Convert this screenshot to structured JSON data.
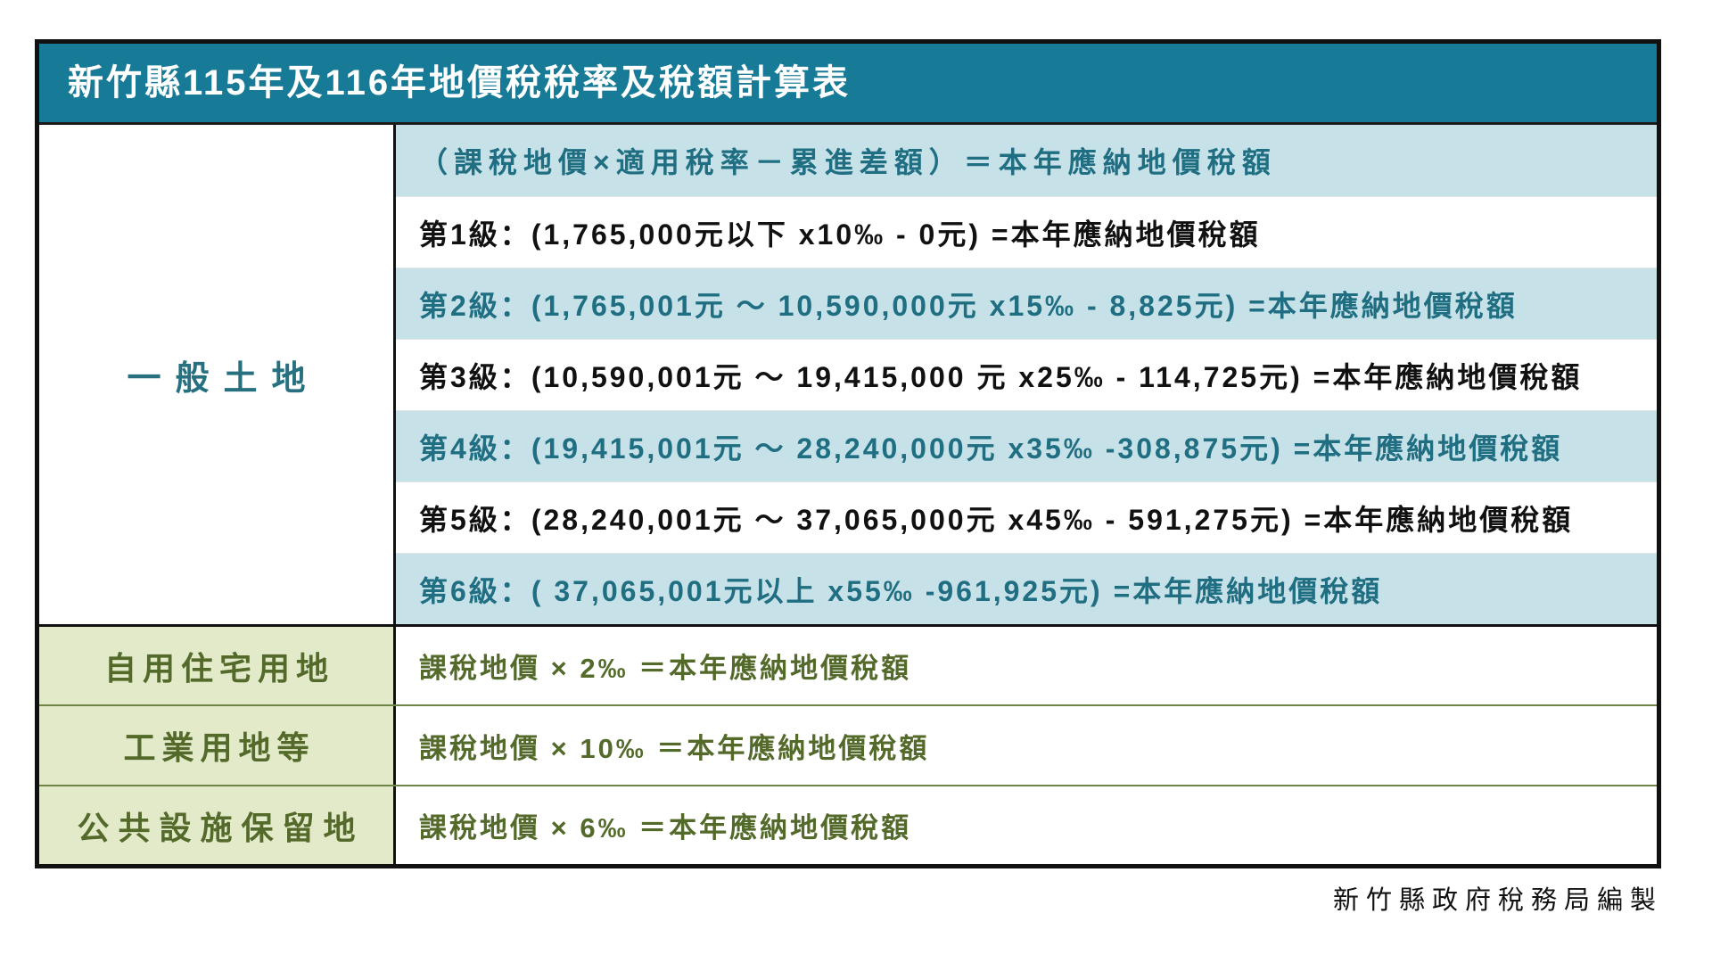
{
  "title": "新竹縣115年及116年地價稅稅率及稅額計算表",
  "general_land": {
    "label": "一般土地",
    "formula": "（課稅地價×適用稅率－累進差額）＝本年應納地價稅額",
    "brackets": [
      {
        "grade": "第1級：",
        "formula": "(1,765,000元以下 x10‰ - 0元) =本年應納地價稅額",
        "range": "1,765,000元以下",
        "rate": "10‰",
        "progressive_difference": "0元"
      },
      {
        "grade": "第2級：",
        "formula": "(1,765,001元 ～ 10,590,000元 x15‰ - 8,825元) =本年應納地價稅額",
        "range": "1,765,001元 ～ 10,590,000元",
        "rate": "15‰",
        "progressive_difference": "8,825元"
      },
      {
        "grade": "第3級：",
        "formula": "(10,590,001元 ～ 19,415,000 元 x25‰ - 114,725元) =本年應納地價稅額",
        "range": "10,590,001元 ～ 19,415,000 元",
        "rate": "25‰",
        "progressive_difference": "114,725元"
      },
      {
        "grade": "第4級：",
        "formula": "(19,415,001元 ～ 28,240,000元 x35‰ -308,875元) =本年應納地價稅額",
        "range": "19,415,001元 ～ 28,240,000元",
        "rate": "35‰",
        "progressive_difference": "308,875元"
      },
      {
        "grade": "第5級：",
        "formula": "(28,240,001元 ～ 37,065,000元 x45‰ - 591,275元) =本年應納地價稅額",
        "range": "28,240,001元 ～ 37,065,000元",
        "rate": "45‰",
        "progressive_difference": "591,275元"
      },
      {
        "grade": "第6級：",
        "formula": "( 37,065,001元以上 x55‰ -961,925元) =本年應納地價稅額",
        "range": "37,065,001元以上",
        "rate": "55‰",
        "progressive_difference": "961,925元"
      }
    ]
  },
  "special_land": [
    {
      "label": "自用住宅用地",
      "formula": "課稅地價 × 2‰ ＝本年應納地價稅額",
      "rate": "2‰"
    },
    {
      "label": "工業用地等",
      "formula": "課稅地價 × 10‰ ＝本年應納地價稅額",
      "rate": "10‰"
    },
    {
      "label": "公共設施保留地",
      "formula": "課稅地價 × 6‰ ＝本年應納地價稅額",
      "rate": "6‰"
    }
  ],
  "footer": "新竹縣政府稅務局編製",
  "colors": {
    "title_bg": "#177a96",
    "row_highlight_bg": "#c7e1e8",
    "teal_text": "#1f6e82",
    "special_label_bg": "#e3eac9",
    "olive_text": "#536a2a",
    "olive_divider": "#6f8447",
    "border": "#111111"
  }
}
